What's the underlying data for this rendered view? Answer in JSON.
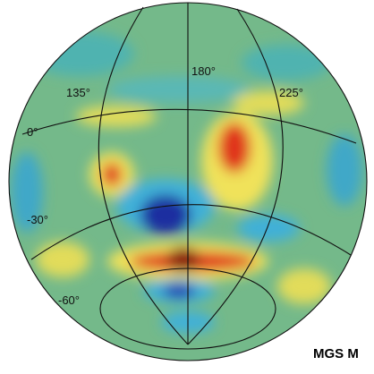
{
  "map": {
    "longitude_labels": [
      "135°",
      "180°",
      "225°"
    ],
    "latitude_labels": [
      "0°",
      "-30°",
      "-60°"
    ],
    "caption": "MGS M"
  }
}
